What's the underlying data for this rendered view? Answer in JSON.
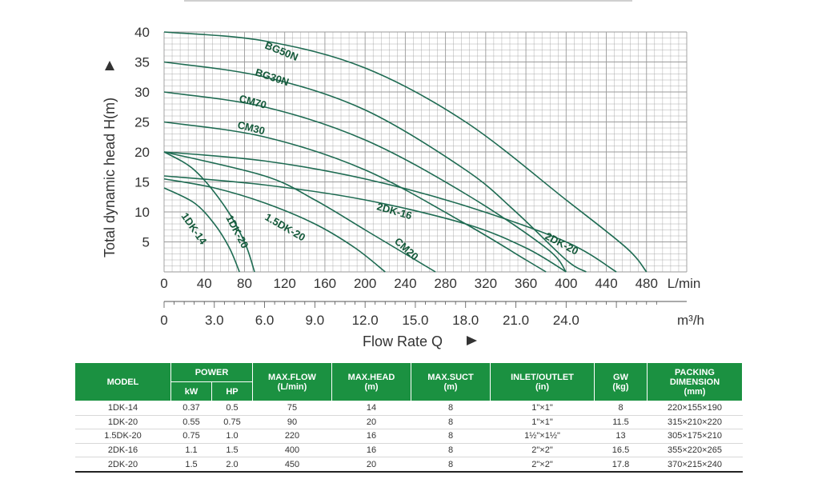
{
  "chart_data": {
    "type": "line",
    "ylabel": "Total dynamic head H(m)",
    "xlabel": "Flow Rate Q",
    "x_unit_top": "L/min",
    "x_unit_bottom": "m³/h",
    "xlim": [
      0,
      520
    ],
    "ylim": [
      0,
      40
    ],
    "x_ticks": [
      "0",
      "40",
      "80",
      "120",
      "160",
      "200",
      "240",
      "280",
      "320",
      "360",
      "400",
      "440",
      "480"
    ],
    "x_ticks_m3h": [
      "0",
      "3.0",
      "6.0",
      "9.0",
      "12.0",
      "15.0",
      "18.0",
      "21.0",
      "24.0"
    ],
    "y_ticks": [
      "5",
      "10",
      "15",
      "20",
      "25",
      "30",
      "35",
      "40"
    ],
    "grid": true,
    "colors": {
      "curve": "#1e6b52",
      "grid": "#9a9a9a",
      "header": "#1b9141"
    },
    "series": [
      {
        "name": "BG50N",
        "points": [
          [
            0,
            40
          ],
          [
            100,
            38.5
          ],
          [
            200,
            34
          ],
          [
            300,
            25
          ],
          [
            400,
            12
          ],
          [
            460,
            4
          ],
          [
            480,
            0
          ]
        ]
      },
      {
        "name": "BG30N",
        "points": [
          [
            0,
            35
          ],
          [
            100,
            32.5
          ],
          [
            200,
            27
          ],
          [
            300,
            17
          ],
          [
            350,
            10
          ],
          [
            400,
            2
          ],
          [
            420,
            0
          ]
        ]
      },
      {
        "name": "CM70",
        "points": [
          [
            0,
            30
          ],
          [
            100,
            27.5
          ],
          [
            200,
            22
          ],
          [
            300,
            13
          ],
          [
            380,
            4
          ],
          [
            400,
            0
          ]
        ]
      },
      {
        "name": "CM30",
        "points": [
          [
            0,
            25
          ],
          [
            100,
            22.5
          ],
          [
            200,
            17
          ],
          [
            300,
            8
          ],
          [
            360,
            2
          ],
          [
            380,
            0
          ]
        ]
      },
      {
        "name": "2DK-20",
        "points": [
          [
            0,
            20
          ],
          [
            100,
            18.5
          ],
          [
            200,
            15.5
          ],
          [
            300,
            11
          ],
          [
            400,
            5
          ],
          [
            450,
            0
          ]
        ]
      },
      {
        "name": "2DK-16",
        "points": [
          [
            0,
            16
          ],
          [
            100,
            14.5
          ],
          [
            200,
            12
          ],
          [
            300,
            8
          ],
          [
            360,
            4
          ],
          [
            400,
            0
          ]
        ]
      },
      {
        "name": "CM20",
        "points": [
          [
            0,
            20
          ],
          [
            100,
            16
          ],
          [
            150,
            12
          ],
          [
            200,
            7
          ],
          [
            240,
            3
          ],
          [
            270,
            0
          ]
        ]
      },
      {
        "name": "1.5DK-20",
        "points": [
          [
            0,
            15.5
          ],
          [
            50,
            14
          ],
          [
            100,
            11.5
          ],
          [
            150,
            8
          ],
          [
            190,
            4
          ],
          [
            220,
            0
          ]
        ]
      },
      {
        "name": "1DK-20",
        "points": [
          [
            0,
            20
          ],
          [
            30,
            17
          ],
          [
            60,
            11
          ],
          [
            80,
            5
          ],
          [
            90,
            0
          ]
        ]
      },
      {
        "name": "1DK-14",
        "points": [
          [
            0,
            14
          ],
          [
            30,
            11.5
          ],
          [
            50,
            8
          ],
          [
            65,
            4
          ],
          [
            75,
            0
          ]
        ]
      }
    ],
    "annotations": [
      "BG50N",
      "BG30N",
      "CM70",
      "CM30",
      "2DK-16",
      "2DK-20",
      "CM20",
      "1.5DK-20",
      "1DK-20",
      "1DK-14"
    ]
  },
  "table": {
    "headers": {
      "model": "MODEL",
      "power": "POWER",
      "kw": "kW",
      "hp": "HP",
      "max_flow": [
        "MAX.FLOW",
        "(L/min)"
      ],
      "max_head": [
        "MAX.HEAD",
        "(m)"
      ],
      "max_suct": [
        "MAX.SUCT",
        "(m)"
      ],
      "inlet_outlet": [
        "INLET/OUTLET",
        "(in)"
      ],
      "gw": [
        "GW",
        "(kg)"
      ],
      "packing": [
        "PACKING",
        "DIMENSION",
        "(mm)"
      ]
    },
    "rows": [
      [
        "1DK-14",
        "0.37",
        "0.5",
        "75",
        "14",
        "8",
        "1\"×1\"",
        "8",
        "220×155×190"
      ],
      [
        "1DK-20",
        "0.55",
        "0.75",
        "90",
        "20",
        "8",
        "1\"×1\"",
        "11.5",
        "315×210×220"
      ],
      [
        "1.5DK-20",
        "0.75",
        "1.0",
        "220",
        "16",
        "8",
        "1½\"×1½\"",
        "13",
        "305×175×210"
      ],
      [
        "2DK-16",
        "1.1",
        "1.5",
        "400",
        "16",
        "8",
        "2\"×2\"",
        "16.5",
        "355×220×265"
      ],
      [
        "2DK-20",
        "1.5",
        "2.0",
        "450",
        "20",
        "8",
        "2\"×2\"",
        "17.8",
        "370×215×240"
      ]
    ]
  }
}
